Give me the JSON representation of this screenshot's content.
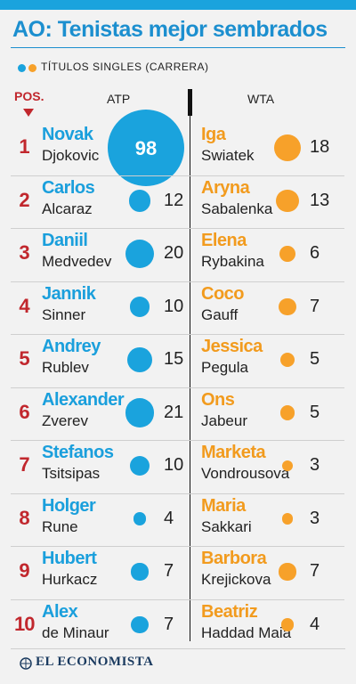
{
  "header": {
    "title": "AO: Tenistas mejor sembrados"
  },
  "legend": {
    "label": "TÍTULOS SINGLES (CARRERA)",
    "colors": [
      "#1aa3dd",
      "#f7a12a"
    ]
  },
  "columns": {
    "pos": "POS.",
    "atp": "ATP",
    "wta": "WTA"
  },
  "colors": {
    "atp": "#1aa3dd",
    "wta": "#f7a12a",
    "rank": "#c1272d"
  },
  "footer": {
    "brand": "EL ECONOMISTA"
  },
  "chart_data": {
    "type": "table",
    "title": "AO: Tenistas mejor sembrados",
    "subtitle": "TÍTULOS SINGLES (CARRERA)",
    "columns": [
      "POS.",
      "ATP",
      "WTA"
    ],
    "rows": [
      {
        "rank": "1",
        "atp": {
          "first": "Novak",
          "last": "Djokovic",
          "titles": 98
        },
        "wta": {
          "first": "Iga",
          "last": "Swiatek",
          "titles": 18
        }
      },
      {
        "rank": "2",
        "atp": {
          "first": "Carlos",
          "last": "Alcaraz",
          "titles": 12
        },
        "wta": {
          "first": "Aryna",
          "last": "Sabalenka",
          "titles": 13
        }
      },
      {
        "rank": "3",
        "atp": {
          "first": "Daniil",
          "last": "Medvedev",
          "titles": 20
        },
        "wta": {
          "first": "Elena",
          "last": "Rybakina",
          "titles": 6
        }
      },
      {
        "rank": "4",
        "atp": {
          "first": "Jannik",
          "last": "Sinner",
          "titles": 10
        },
        "wta": {
          "first": "Coco",
          "last": "Gauff",
          "titles": 7
        }
      },
      {
        "rank": "5",
        "atp": {
          "first": "Andrey",
          "last": "Rublev",
          "titles": 15
        },
        "wta": {
          "first": "Jessica",
          "last": "Pegula",
          "titles": 5
        }
      },
      {
        "rank": "6",
        "atp": {
          "first": "Alexander",
          "last": "Zverev",
          "titles": 21
        },
        "wta": {
          "first": "Ons",
          "last": "Jabeur",
          "titles": 5
        }
      },
      {
        "rank": "7",
        "atp": {
          "first": "Stefanos",
          "last": "Tsitsipas",
          "titles": 10
        },
        "wta": {
          "first": "Marketa",
          "last": "Vondrousova",
          "titles": 3
        }
      },
      {
        "rank": "8",
        "atp": {
          "first": "Holger",
          "last": "Rune",
          "titles": 4
        },
        "wta": {
          "first": "Maria",
          "last": "Sakkari",
          "titles": 3
        }
      },
      {
        "rank": "9",
        "atp": {
          "first": "Hubert",
          "last": "Hurkacz",
          "titles": 7
        },
        "wta": {
          "first": "Barbora",
          "last": "Krejickova",
          "titles": 7
        }
      },
      {
        "rank": "10",
        "atp": {
          "first": "Alex",
          "last": "de Minaur",
          "titles": 7
        },
        "wta": {
          "first": "Beatriz",
          "last": "Haddad Maia",
          "titles": 4
        }
      }
    ]
  }
}
